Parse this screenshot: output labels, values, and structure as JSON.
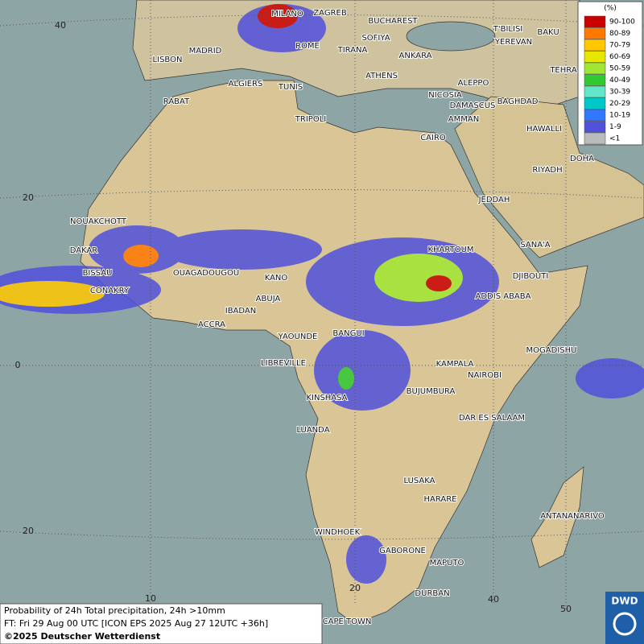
{
  "legend": {
    "title": "(%)",
    "entries": [
      {
        "label": "90-100",
        "color": "#c80000"
      },
      {
        "label": "80-89",
        "color": "#ff7800"
      },
      {
        "label": "70-79",
        "color": "#ffc800"
      },
      {
        "label": "60-69",
        "color": "#e6e600"
      },
      {
        "label": "50-59",
        "color": "#a0e632"
      },
      {
        "label": "40-49",
        "color": "#32c832"
      },
      {
        "label": "30-39",
        "color": "#64e6c8"
      },
      {
        "label": "20-29",
        "color": "#00c8c8"
      },
      {
        "label": "10-19",
        "color": "#3278ff"
      },
      {
        "label": "1-9",
        "color": "#5050dc"
      },
      {
        "label": "<1",
        "color": "#bbbbbb"
      }
    ]
  },
  "cities": [
    "MILANO",
    "ZAGREB",
    "BUCHAREST",
    "SOFIYA",
    "ROME",
    "TIRANA",
    "ANKARA",
    "T'BILISI",
    "BAKU",
    "YEREVAN",
    "TEHRA",
    "MADRID",
    "LISBON",
    "ALGIERS",
    "TUNIS",
    "ATHENS",
    "ALEPPO",
    "NICOSIA",
    "BAGHDAD",
    "RABAT",
    "TRIPOLI",
    "DAMASCUS",
    "AMMAN",
    "HAWALLI",
    "CAIRO",
    "DOHA",
    "RIYADH",
    "JEDDAH",
    "NOUAKCHOTT",
    "DAKAR",
    "SANA'A",
    "KHARTOUM",
    "BISSAU",
    "DJIBOUTI",
    "OUAGADOUGOU",
    "KANO",
    "CONAKRY",
    "ABUJA",
    "ADDIS ABABA",
    "IBADAN",
    "ACCRA",
    "YAOUNDE",
    "BANGUI",
    "MOGADISHU",
    "LIBREVILLE",
    "KAMPALA",
    "NAIROBI",
    "KINSHASA",
    "BUJUMBURA",
    "DAR ES SALAAM",
    "LUANDA",
    "LUSAKA",
    "HARARE",
    "ANTANANARIVO",
    "WINDHOEK",
    "GABORONE",
    "MAPUTO",
    "DURBAN",
    "CAPE TOWN"
  ],
  "grid_labels": {
    "latitude": [
      "40",
      "20",
      "0",
      "20"
    ],
    "longitude": [
      "10",
      "20",
      "40",
      "50"
    ]
  },
  "caption": [
    "Probability of 24h Total precipitation, 24h >10mm",
    "FT: Fri 29 Aug 00 UTC [ICON EPS 2025 Aug 27 12UTC +36h]",
    "©2025 Deutscher Wetterdienst"
  ],
  "logo": "DWD"
}
